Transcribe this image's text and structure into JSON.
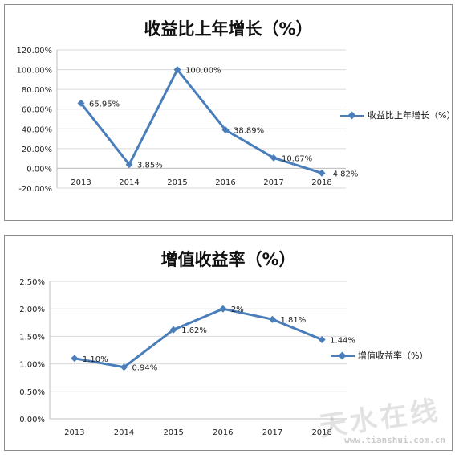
{
  "chart_data": [
    {
      "type": "line",
      "title": "收益比上年增长（%）",
      "categories": [
        "2013",
        "2014",
        "2015",
        "2016",
        "2017",
        "2018"
      ],
      "series": [
        {
          "name": "收益比上年增长（%）",
          "values": [
            65.95,
            3.85,
            100.0,
            38.89,
            10.67,
            -4.82
          ]
        }
      ],
      "data_labels": [
        "65.95%",
        "3.85%",
        "100.00%",
        "38.89%",
        "10.67%",
        "-4.82%"
      ],
      "yticks": [
        "-20.00%",
        "0.00%",
        "20.00%",
        "40.00%",
        "60.00%",
        "80.00%",
        "100.00%",
        "120.00%"
      ],
      "ylim": [
        -20,
        120
      ],
      "grid": true,
      "legend_position": "right",
      "color": "#4a7ebb"
    },
    {
      "type": "line",
      "title": "增值收益率（%）",
      "categories": [
        "2013",
        "2014",
        "2015",
        "2016",
        "2017",
        "2018"
      ],
      "series": [
        {
          "name": "增值收益率（%）",
          "values": [
            1.1,
            0.94,
            1.62,
            2.0,
            1.81,
            1.44
          ]
        }
      ],
      "data_labels": [
        "1.10%",
        "0.94%",
        "1.62%",
        "2%",
        "1.81%",
        "1.44%"
      ],
      "yticks": [
        "0.00%",
        "0.50%",
        "1.00%",
        "1.50%",
        "2.00%",
        "2.50%"
      ],
      "ylim": [
        0,
        2.5
      ],
      "grid": true,
      "legend_position": "right",
      "color": "#4a7ebb"
    }
  ],
  "watermark": {
    "text": "天水在线",
    "url": "www.tianshui.com.cn"
  }
}
